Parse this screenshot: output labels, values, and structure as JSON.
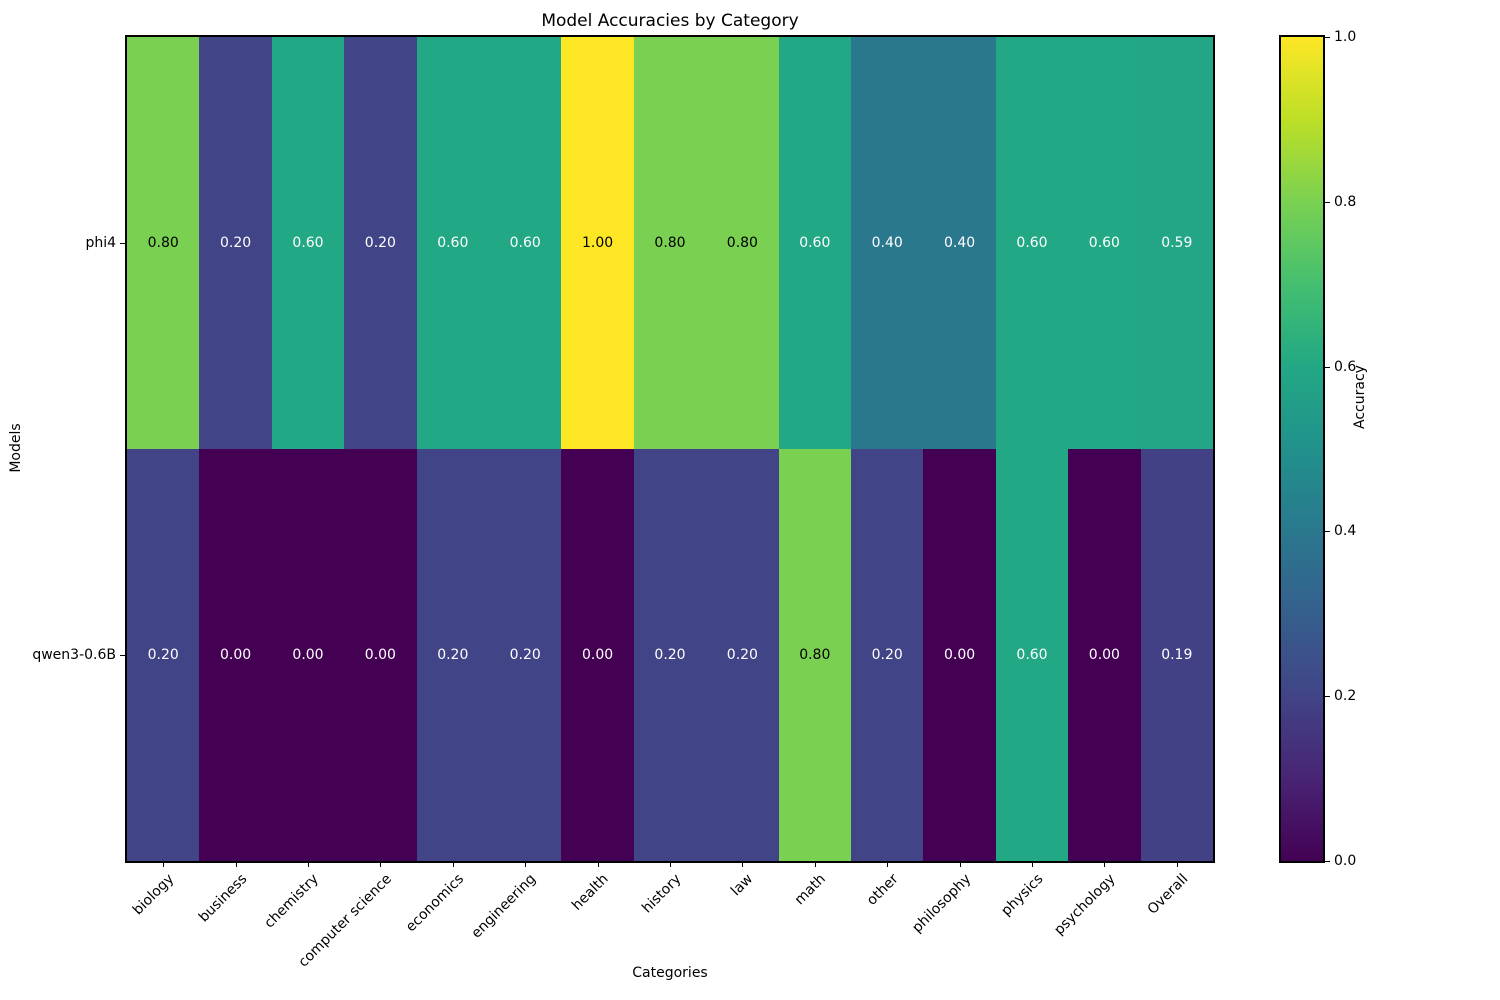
{
  "title": "Model Accuracies by Category",
  "xlabel": "Categories",
  "ylabel": "Models",
  "colorbar": {
    "label": "Accuracy",
    "tick_values": [
      1.0,
      0.8,
      0.6,
      0.4,
      0.2,
      0.0
    ],
    "min": 0.0,
    "max": 1.0
  },
  "chart_data": {
    "type": "heatmap",
    "title": "Model Accuracies by Category",
    "xlabel": "Categories",
    "ylabel": "Models",
    "colormap": "viridis",
    "value_range": [
      0.0,
      1.0
    ],
    "cell_label_decimals": 2,
    "categories": [
      "biology",
      "business",
      "chemistry",
      "computer science",
      "economics",
      "engineering",
      "health",
      "history",
      "law",
      "math",
      "other",
      "philosophy",
      "physics",
      "psychology",
      "Overall"
    ],
    "models": [
      "phi4",
      "qwen3-0.6B"
    ],
    "series": [
      {
        "name": "phi4",
        "values": [
          0.8,
          0.2,
          0.6,
          0.2,
          0.6,
          0.6,
          1.0,
          0.8,
          0.8,
          0.6,
          0.4,
          0.4,
          0.6,
          0.6,
          0.59
        ]
      },
      {
        "name": "qwen3-0.6B",
        "values": [
          0.2,
          0.0,
          0.0,
          0.0,
          0.2,
          0.2,
          0.0,
          0.2,
          0.2,
          0.8,
          0.2,
          0.0,
          0.6,
          0.0,
          0.19
        ]
      }
    ],
    "colorbar_label": "Accuracy",
    "colorbar_ticks": [
      1.0,
      0.8,
      0.6,
      0.4,
      0.2,
      0.0
    ],
    "legend_position": "right",
    "grid": false
  },
  "colors": {
    "background": "#ffffff",
    "spine": "#000000",
    "tick": "#000000",
    "annotation_dark": "#000000",
    "annotation_light": "#ffffff",
    "viridis_stops": [
      "#440154",
      "#482475",
      "#414487",
      "#355f8d",
      "#2a788e",
      "#21918c",
      "#22a884",
      "#44bf70",
      "#7ad151",
      "#bddf26",
      "#fde725"
    ]
  }
}
